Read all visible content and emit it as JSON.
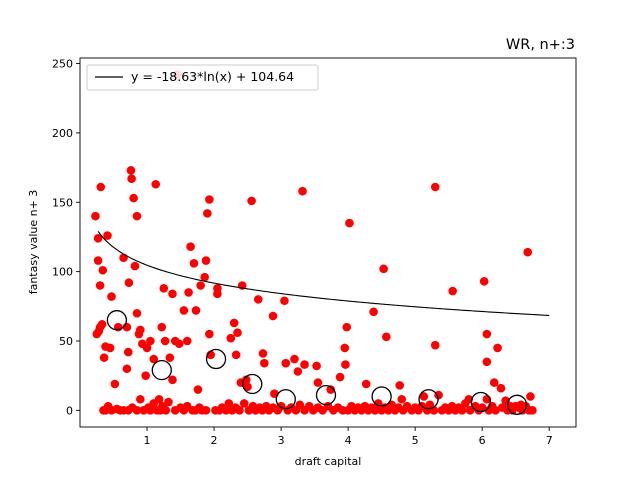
{
  "chart_data": {
    "type": "scatter",
    "title": "WR, n+:3",
    "xlabel": "draft capital",
    "ylabel": "fantasy value n+ 3",
    "xlim": [
      0.0,
      7.4
    ],
    "ylim": [
      -12,
      254
    ],
    "x_ticks": [
      1,
      2,
      3,
      4,
      5,
      6,
      7
    ],
    "y_ticks": [
      0,
      50,
      100,
      150,
      200,
      250
    ],
    "grid": false,
    "legend": {
      "placement": "upper-left",
      "entries": [
        "y = -18.63*ln(x) + 104.64"
      ]
    },
    "colors": {
      "points": "#ff0000",
      "fit_line": "#000000",
      "bin_means": "#000000"
    },
    "fit": {
      "a": -18.63,
      "b": 104.64,
      "x_range": [
        0.27,
        7.0
      ]
    },
    "series": [
      {
        "kind": "scatter",
        "points": [
          [
            0.23,
            140
          ],
          [
            0.27,
            124
          ],
          [
            0.27,
            108
          ],
          [
            0.3,
            90
          ],
          [
            0.31,
            161
          ],
          [
            0.34,
            101
          ],
          [
            0.41,
            126
          ],
          [
            0.36,
            38
          ],
          [
            0.38,
            46
          ],
          [
            0.47,
            82
          ],
          [
            0.45,
            45
          ],
          [
            0.25,
            55
          ],
          [
            0.28,
            57
          ],
          [
            0.3,
            60
          ],
          [
            0.33,
            62
          ],
          [
            0.52,
            19
          ],
          [
            0.57,
            60
          ],
          [
            0.65,
            110
          ],
          [
            0.7,
            60
          ],
          [
            0.73,
            92
          ],
          [
            0.76,
            173
          ],
          [
            0.77,
            167
          ],
          [
            0.8,
            153
          ],
          [
            0.82,
            104
          ],
          [
            0.85,
            140
          ],
          [
            0.85,
            70
          ],
          [
            0.88,
            55
          ],
          [
            0.9,
            58
          ],
          [
            0.93,
            48
          ],
          [
            0.7,
            30
          ],
          [
            0.72,
            42
          ],
          [
            1.0,
            45
          ],
          [
            1.05,
            50
          ],
          [
            1.1,
            37
          ],
          [
            1.13,
            163
          ],
          [
            1.22,
            60
          ],
          [
            1.25,
            88
          ],
          [
            1.27,
            50
          ],
          [
            1.34,
            38
          ],
          [
            1.38,
            84
          ],
          [
            1.42,
            50
          ],
          [
            1.45,
            242
          ],
          [
            1.48,
            48
          ],
          [
            1.55,
            72
          ],
          [
            1.6,
            50
          ],
          [
            1.62,
            85
          ],
          [
            1.65,
            118
          ],
          [
            1.7,
            106
          ],
          [
            1.73,
            72
          ],
          [
            1.8,
            90
          ],
          [
            1.86,
            96
          ],
          [
            1.88,
            108
          ],
          [
            1.9,
            142
          ],
          [
            1.93,
            152
          ],
          [
            1.93,
            55
          ],
          [
            2.05,
            84
          ],
          [
            2.05,
            88
          ],
          [
            1.95,
            40
          ],
          [
            1.76,
            15
          ],
          [
            2.25,
            52
          ],
          [
            2.3,
            63
          ],
          [
            2.33,
            40
          ],
          [
            2.35,
            56
          ],
          [
            2.42,
            90
          ],
          [
            2.48,
            22
          ],
          [
            2.5,
            17
          ],
          [
            2.56,
            151
          ],
          [
            2.66,
            80
          ],
          [
            2.73,
            41
          ],
          [
            2.75,
            34
          ],
          [
            2.88,
            68
          ],
          [
            3.05,
            79
          ],
          [
            3.07,
            34
          ],
          [
            3.2,
            37
          ],
          [
            3.25,
            28
          ],
          [
            3.32,
            158
          ],
          [
            3.35,
            33
          ],
          [
            2.4,
            20
          ],
          [
            2.9,
            12
          ],
          [
            3.53,
            32
          ],
          [
            3.55,
            20
          ],
          [
            3.74,
            15
          ],
          [
            3.88,
            24
          ],
          [
            3.95,
            45
          ],
          [
            3.96,
            33
          ],
          [
            3.98,
            60
          ],
          [
            4.02,
            135
          ],
          [
            4.27,
            19
          ],
          [
            4.38,
            71
          ],
          [
            4.53,
            102
          ],
          [
            4.57,
            53
          ],
          [
            4.77,
            18
          ],
          [
            4.8,
            8
          ],
          [
            5.13,
            10
          ],
          [
            5.3,
            161
          ],
          [
            5.3,
            47
          ],
          [
            5.56,
            86
          ],
          [
            5.8,
            8
          ],
          [
            6.03,
            93
          ],
          [
            6.07,
            55
          ],
          [
            6.07,
            35
          ],
          [
            6.18,
            20
          ],
          [
            6.28,
            16
          ],
          [
            6.35,
            7
          ],
          [
            6.5,
            3
          ],
          [
            6.58,
            4
          ],
          [
            6.68,
            114
          ],
          [
            6.72,
            10
          ],
          [
            6.07,
            8
          ],
          [
            6.23,
            45
          ],
          [
            0.35,
            0
          ],
          [
            0.38,
            0
          ],
          [
            0.42,
            3
          ],
          [
            0.47,
            0
          ],
          [
            0.55,
            1
          ],
          [
            0.6,
            0
          ],
          [
            0.65,
            0
          ],
          [
            0.72,
            0
          ],
          [
            0.78,
            2
          ],
          [
            0.85,
            0
          ],
          [
            0.9,
            8
          ],
          [
            0.95,
            0
          ],
          [
            0.98,
            25
          ],
          [
            1.02,
            2
          ],
          [
            1.05,
            0
          ],
          [
            1.1,
            5
          ],
          [
            1.15,
            0
          ],
          [
            1.18,
            8
          ],
          [
            1.2,
            0
          ],
          [
            1.23,
            3
          ],
          [
            1.28,
            0
          ],
          [
            1.32,
            6
          ],
          [
            1.38,
            22
          ],
          [
            1.42,
            0
          ],
          [
            1.5,
            2
          ],
          [
            1.55,
            0
          ],
          [
            1.6,
            3
          ],
          [
            1.68,
            0
          ],
          [
            1.72,
            0
          ],
          [
            1.78,
            2
          ],
          [
            1.82,
            0
          ],
          [
            1.88,
            0
          ],
          [
            2.02,
            0
          ],
          [
            2.08,
            0
          ],
          [
            2.12,
            2
          ],
          [
            2.18,
            0
          ],
          [
            2.22,
            5
          ],
          [
            2.27,
            0
          ],
          [
            2.32,
            2
          ],
          [
            2.38,
            0
          ],
          [
            2.45,
            5
          ],
          [
            2.52,
            0
          ],
          [
            2.58,
            3
          ],
          [
            2.62,
            0
          ],
          [
            2.68,
            2
          ],
          [
            2.72,
            0
          ],
          [
            2.78,
            3
          ],
          [
            2.82,
            0
          ],
          [
            2.88,
            2
          ],
          [
            2.95,
            0
          ],
          [
            3.0,
            3
          ],
          [
            3.1,
            0
          ],
          [
            3.15,
            2
          ],
          [
            3.22,
            0
          ],
          [
            3.28,
            4
          ],
          [
            3.35,
            0
          ],
          [
            3.42,
            3
          ],
          [
            3.48,
            0
          ],
          [
            3.55,
            2
          ],
          [
            3.62,
            0
          ],
          [
            3.7,
            3
          ],
          [
            3.78,
            0
          ],
          [
            3.85,
            2
          ],
          [
            3.92,
            0
          ],
          [
            4.0,
            0
          ],
          [
            4.05,
            3
          ],
          [
            4.1,
            0
          ],
          [
            4.15,
            2
          ],
          [
            4.2,
            0
          ],
          [
            4.25,
            3
          ],
          [
            4.3,
            0
          ],
          [
            4.35,
            2
          ],
          [
            4.4,
            0
          ],
          [
            4.45,
            5
          ],
          [
            4.5,
            0
          ],
          [
            4.55,
            2
          ],
          [
            4.6,
            0
          ],
          [
            4.65,
            4
          ],
          [
            4.7,
            0
          ],
          [
            4.75,
            2
          ],
          [
            4.82,
            0
          ],
          [
            4.88,
            3
          ],
          [
            4.95,
            0
          ],
          [
            5.0,
            2
          ],
          [
            5.05,
            0
          ],
          [
            5.1,
            3
          ],
          [
            5.18,
            0
          ],
          [
            5.22,
            4
          ],
          [
            5.28,
            0
          ],
          [
            5.35,
            11
          ],
          [
            5.4,
            0
          ],
          [
            5.45,
            2
          ],
          [
            5.5,
            0
          ],
          [
            5.55,
            3
          ],
          [
            5.6,
            0
          ],
          [
            5.65,
            2
          ],
          [
            5.7,
            0
          ],
          [
            5.75,
            5
          ],
          [
            5.82,
            0
          ],
          [
            5.9,
            3
          ],
          [
            5.95,
            0
          ],
          [
            6.0,
            2
          ],
          [
            6.1,
            0
          ],
          [
            6.15,
            3
          ],
          [
            6.2,
            0
          ],
          [
            6.3,
            2
          ],
          [
            6.38,
            0
          ],
          [
            6.42,
            3
          ],
          [
            6.45,
            0
          ],
          [
            6.55,
            2
          ],
          [
            6.6,
            0
          ],
          [
            6.65,
            3
          ],
          [
            6.7,
            0
          ],
          [
            6.75,
            0
          ]
        ]
      },
      {
        "kind": "bin_means",
        "points": [
          [
            0.55,
            65
          ],
          [
            1.22,
            29
          ],
          [
            2.03,
            37
          ],
          [
            2.57,
            19
          ],
          [
            3.07,
            8
          ],
          [
            3.67,
            11
          ],
          [
            4.5,
            10
          ],
          [
            5.2,
            8
          ],
          [
            5.98,
            6
          ],
          [
            6.52,
            4
          ]
        ]
      }
    ]
  }
}
